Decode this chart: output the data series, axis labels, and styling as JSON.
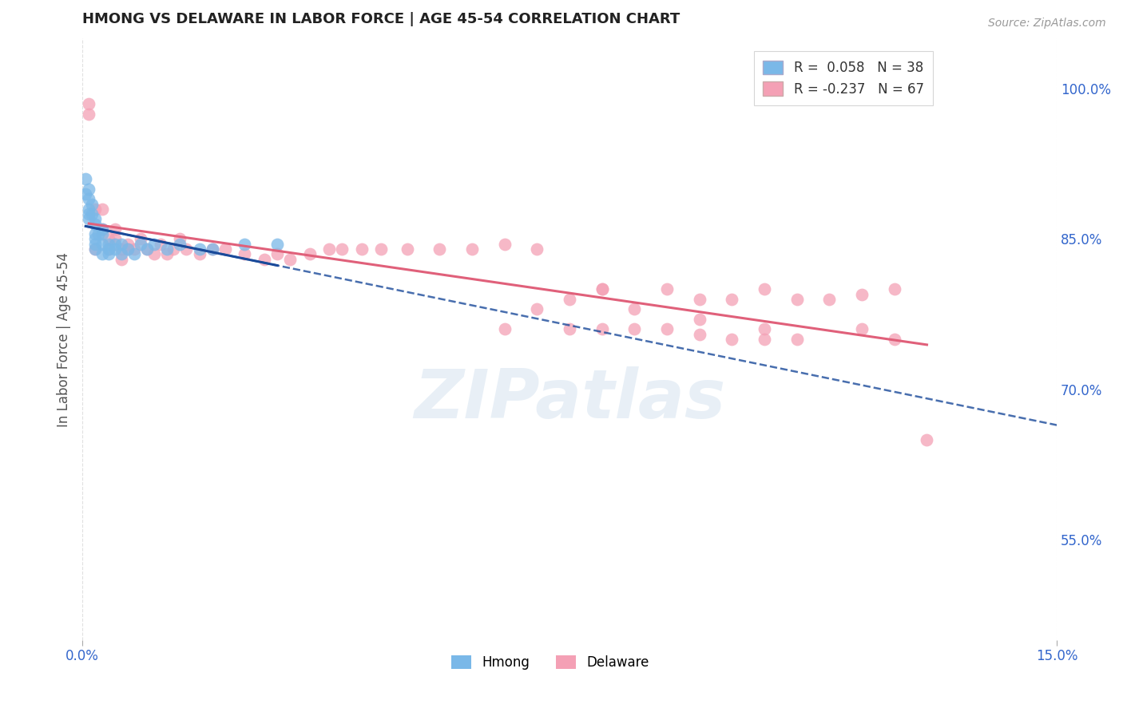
{
  "title": "HMONG VS DELAWARE IN LABOR FORCE | AGE 45-54 CORRELATION CHART",
  "source": "Source: ZipAtlas.com",
  "ylabel": "In Labor Force | Age 45-54",
  "xlim": [
    0.0,
    0.15
  ],
  "ylim": [
    0.45,
    1.05
  ],
  "xtick_vals": [
    0.0,
    0.15
  ],
  "xticklabels": [
    "0.0%",
    "15.0%"
  ],
  "ytick_labels_right": [
    "55.0%",
    "70.0%",
    "85.0%",
    "100.0%"
  ],
  "ytick_values_right": [
    0.55,
    0.7,
    0.85,
    1.0
  ],
  "hmong_R": 0.058,
  "hmong_N": 38,
  "delaware_R": -0.237,
  "delaware_N": 67,
  "hmong_color": "#7ab8e8",
  "delaware_color": "#f4a0b5",
  "hmong_line_color": "#1a4a9a",
  "delaware_line_color": "#e0607a",
  "legend_label_hmong": "Hmong",
  "legend_label_delaware": "Delaware",
  "hmong_x": [
    0.0005,
    0.0005,
    0.001,
    0.001,
    0.001,
    0.001,
    0.001,
    0.0015,
    0.0015,
    0.002,
    0.002,
    0.002,
    0.002,
    0.002,
    0.002,
    0.0025,
    0.003,
    0.003,
    0.003,
    0.003,
    0.004,
    0.004,
    0.004,
    0.005,
    0.005,
    0.006,
    0.006,
    0.007,
    0.008,
    0.009,
    0.01,
    0.011,
    0.013,
    0.015,
    0.018,
    0.02,
    0.025,
    0.03
  ],
  "hmong_y": [
    0.91,
    0.895,
    0.9,
    0.89,
    0.88,
    0.875,
    0.87,
    0.885,
    0.875,
    0.87,
    0.865,
    0.855,
    0.85,
    0.845,
    0.84,
    0.855,
    0.855,
    0.845,
    0.835,
    0.86,
    0.845,
    0.84,
    0.835,
    0.845,
    0.84,
    0.845,
    0.835,
    0.84,
    0.835,
    0.845,
    0.84,
    0.845,
    0.84,
    0.845,
    0.84,
    0.84,
    0.845,
    0.845
  ],
  "delaware_x": [
    0.001,
    0.001,
    0.002,
    0.002,
    0.003,
    0.003,
    0.004,
    0.004,
    0.005,
    0.005,
    0.006,
    0.006,
    0.007,
    0.007,
    0.008,
    0.009,
    0.01,
    0.011,
    0.012,
    0.013,
    0.014,
    0.015,
    0.016,
    0.018,
    0.02,
    0.022,
    0.025,
    0.028,
    0.03,
    0.032,
    0.035,
    0.038,
    0.04,
    0.043,
    0.046,
    0.05,
    0.055,
    0.06,
    0.065,
    0.07,
    0.075,
    0.08,
    0.085,
    0.09,
    0.095,
    0.1,
    0.105,
    0.11,
    0.115,
    0.12,
    0.125,
    0.065,
    0.07,
    0.075,
    0.08,
    0.085,
    0.09,
    0.095,
    0.1,
    0.105,
    0.11,
    0.08,
    0.12,
    0.095,
    0.105,
    0.125,
    0.13
  ],
  "delaware_y": [
    0.985,
    0.975,
    0.88,
    0.84,
    0.88,
    0.86,
    0.85,
    0.84,
    0.85,
    0.86,
    0.84,
    0.83,
    0.84,
    0.845,
    0.84,
    0.85,
    0.84,
    0.835,
    0.845,
    0.835,
    0.84,
    0.85,
    0.84,
    0.835,
    0.84,
    0.84,
    0.835,
    0.83,
    0.835,
    0.83,
    0.835,
    0.84,
    0.84,
    0.84,
    0.84,
    0.84,
    0.84,
    0.84,
    0.845,
    0.84,
    0.79,
    0.8,
    0.78,
    0.8,
    0.79,
    0.79,
    0.8,
    0.79,
    0.79,
    0.795,
    0.8,
    0.76,
    0.78,
    0.76,
    0.76,
    0.76,
    0.76,
    0.755,
    0.75,
    0.75,
    0.75,
    0.8,
    0.76,
    0.77,
    0.76,
    0.75,
    0.65
  ],
  "background_color": "#ffffff",
  "grid_color": "#dddddd",
  "watermark_text": "ZIPatlas",
  "watermark_color": "#ccdded",
  "watermark_alpha": 0.45
}
